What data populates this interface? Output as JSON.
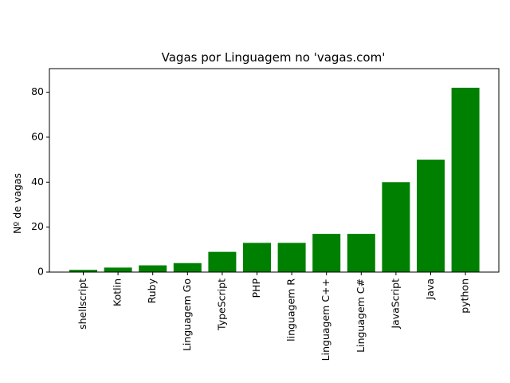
{
  "chart_data": {
    "type": "bar",
    "title": "Vagas por Linguagem no 'vagas.com'",
    "xlabel": "",
    "ylabel": "Nº de vagas",
    "categories": [
      "shellscript",
      "Kotlin",
      "Ruby",
      "Linguagem Go",
      "TypeScript",
      "PHP",
      "linguagem R",
      "Linguagem C++",
      "Linguagem C#",
      "JavaScript",
      "Java",
      "python"
    ],
    "values": [
      1,
      2,
      3,
      4,
      9,
      13,
      13,
      17,
      17,
      40,
      50,
      82
    ],
    "ylim": [
      0,
      90.5
    ],
    "yticks": [
      0,
      20,
      40,
      60,
      80
    ],
    "bar_color": "#008000",
    "grid": false
  }
}
